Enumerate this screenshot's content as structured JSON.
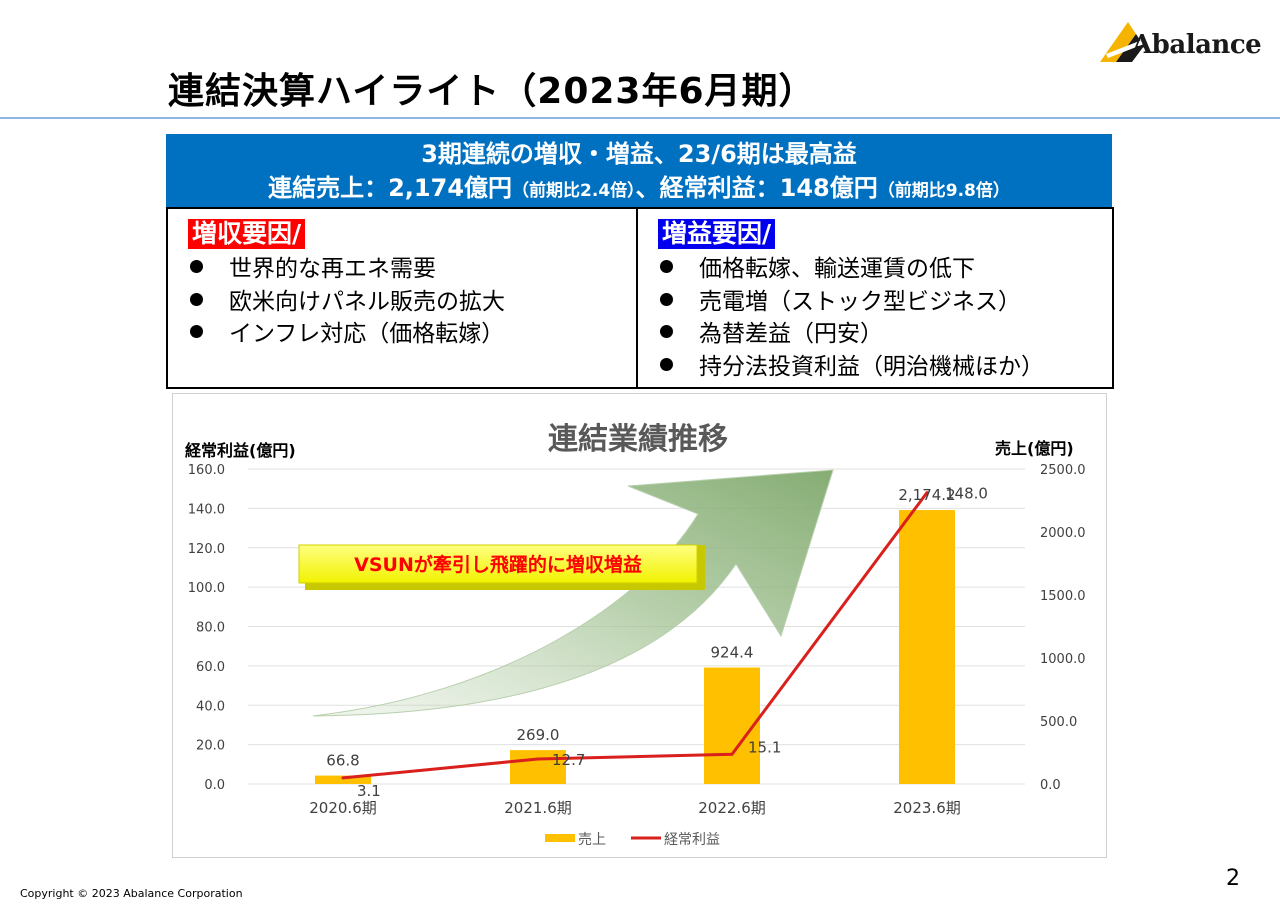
{
  "header": {
    "logo_text": "Abalance",
    "title": "連結決算ハイライト（2023年6月期）"
  },
  "banner": {
    "line1": "3期連続の増収・増益、23/6期は最高益",
    "line2_a": "連結売上：2,174億円",
    "line2_b": "（前期比2.4倍）",
    "line2_c": "、経常利益：148億円",
    "line2_d": "（前期比9.8倍）"
  },
  "revenue_factors": {
    "heading": "増収要因/",
    "items": [
      "世界的な再エネ需要",
      "欧米向けパネル販売の拡大",
      "インフレ対応（価格転嫁）"
    ]
  },
  "profit_factors": {
    "heading": "増益要因/",
    "items": [
      "価格転嫁、輸送運賃の低下",
      "売電増（ストック型ビジネス）",
      "為替差益（円安）",
      "持分法投資利益（明治機械ほか）"
    ]
  },
  "chart_data": {
    "type": "bar",
    "title": "連結業績推移",
    "callout": "VSUNが牽引し飛躍的に増収増益",
    "categories": [
      "2020.6期",
      "2021.6期",
      "2022.6期",
      "2023.6期"
    ],
    "series": [
      {
        "name": "売上",
        "type": "bar",
        "axis": "right",
        "values": [
          66.8,
          269.0,
          924.4,
          2174.2
        ],
        "labels": [
          "66.8",
          "269.0",
          "924.4",
          "2,174.2"
        ],
        "color": "#ffc000"
      },
      {
        "name": "経常利益",
        "type": "line",
        "axis": "left",
        "values": [
          3.1,
          12.7,
          15.1,
          148.0
        ],
        "labels": [
          "3.1",
          "12.7",
          "15.1",
          "148.0"
        ],
        "color": "#d9201c"
      }
    ],
    "left_axis": {
      "label": "経常利益(億円)",
      "min": 0,
      "max": 160,
      "ticks": [
        "0.0",
        "20.0",
        "40.0",
        "60.0",
        "80.0",
        "100.0",
        "120.0",
        "140.0",
        "160.0"
      ]
    },
    "right_axis": {
      "label": "売上(億円)",
      "min": 0,
      "max": 2500,
      "ticks": [
        "0.0",
        "500.0",
        "1000.0",
        "1500.0",
        "2000.0",
        "2500.0"
      ]
    },
    "grid": true,
    "legend_position": "bottom"
  },
  "footer": {
    "copyright": "Copyright © 2023 Abalance Corporation",
    "page_number": "2"
  }
}
